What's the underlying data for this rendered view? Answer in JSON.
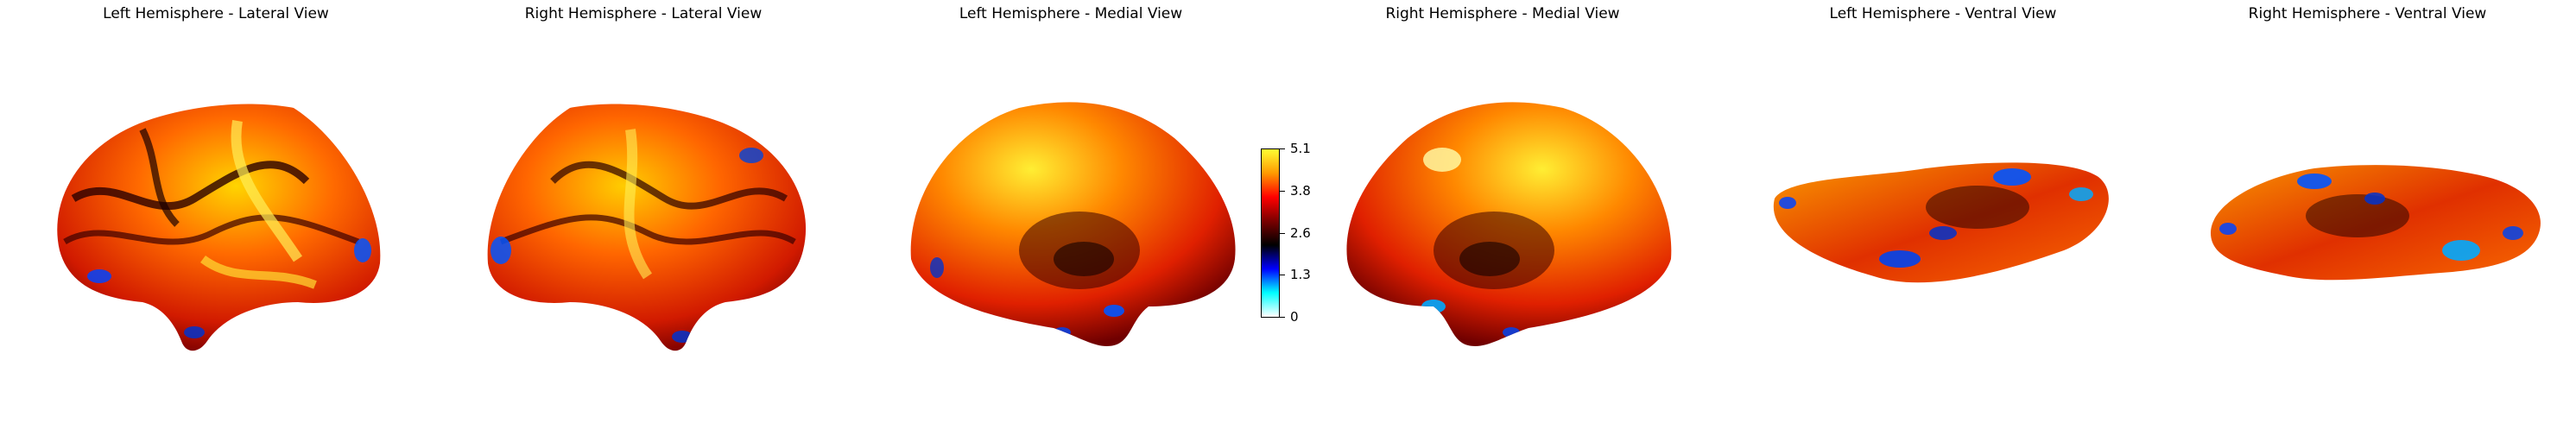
{
  "panels": [
    {
      "title": "Left Hemisphere - Lateral View"
    },
    {
      "title": "Right Hemisphere - Lateral View"
    },
    {
      "title": "Left Hemisphere - Medial View"
    },
    {
      "title": "Right Hemisphere - Medial View"
    },
    {
      "title": "Left Hemisphere - Ventral View"
    },
    {
      "title": "Right Hemisphere - Ventral View"
    }
  ],
  "colorbar": {
    "ticks": [
      "5.1",
      "3.8",
      "2.6",
      "1.3",
      "0"
    ],
    "colormap": [
      "#ffffff",
      "#00ffff",
      "#0000ff",
      "#000000",
      "#7a0000",
      "#ff0000",
      "#ff9900",
      "#ffff33"
    ]
  }
}
